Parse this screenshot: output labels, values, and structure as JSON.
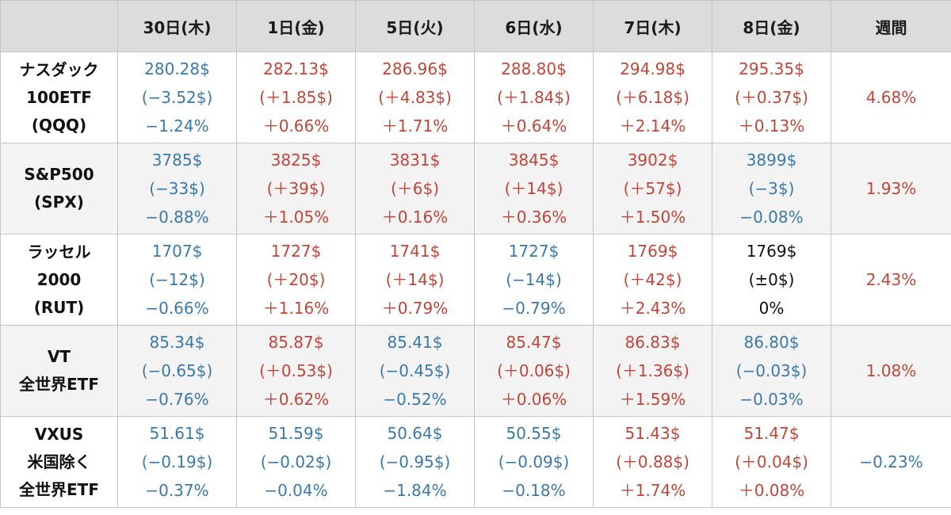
{
  "colors": {
    "up": "#c0463a",
    "down": "#3b79a8",
    "flat": "#111111",
    "header_bg": "#dcdcdc",
    "shade_bg": "#f3f3f3"
  },
  "header": {
    "days": [
      "30日(木)",
      "1日(金)",
      "5日(火)",
      "6日(水)",
      "7日(木)",
      "8日(金)"
    ],
    "weekly": "週間"
  },
  "rows": [
    {
      "name": [
        "ナスダック",
        "100ETF",
        "(QQQ)"
      ],
      "days": [
        {
          "dir": "down",
          "price": "280.28$",
          "change": "(−3.52$)",
          "pct": "−1.24%"
        },
        {
          "dir": "up",
          "price": "282.13$",
          "change": "(＋1.85$)",
          "pct": "＋0.66%"
        },
        {
          "dir": "up",
          "price": "286.96$",
          "change": "(＋4.83$)",
          "pct": "＋1.71%"
        },
        {
          "dir": "up",
          "price": "288.80$",
          "change": "(＋1.84$)",
          "pct": "＋0.64%"
        },
        {
          "dir": "up",
          "price": "294.98$",
          "change": "(＋6.18$)",
          "pct": "＋2.14%"
        },
        {
          "dir": "up",
          "price": "295.35$",
          "change": "(＋0.37$)",
          "pct": "＋0.13%"
        }
      ],
      "weekly": {
        "dir": "up",
        "value": "4.68%"
      }
    },
    {
      "name": [
        "S&P500",
        "(SPX)"
      ],
      "days": [
        {
          "dir": "down",
          "price": "3785$",
          "change": "(−33$)",
          "pct": "−0.88%"
        },
        {
          "dir": "up",
          "price": "3825$",
          "change": "(＋39$)",
          "pct": "＋1.05%"
        },
        {
          "dir": "up",
          "price": "3831$",
          "change": "(＋6$)",
          "pct": "＋0.16%"
        },
        {
          "dir": "up",
          "price": "3845$",
          "change": "(＋14$)",
          "pct": "＋0.36%"
        },
        {
          "dir": "up",
          "price": "3902$",
          "change": "(＋57$)",
          "pct": "＋1.50%"
        },
        {
          "dir": "down",
          "price": "3899$",
          "change": "(−3$)",
          "pct": "−0.08%"
        }
      ],
      "weekly": {
        "dir": "up",
        "value": "1.93%"
      }
    },
    {
      "name": [
        "ラッセル",
        "2000",
        "(RUT)"
      ],
      "days": [
        {
          "dir": "down",
          "price": "1707$",
          "change": "(−12$)",
          "pct": "−0.66%"
        },
        {
          "dir": "up",
          "price": "1727$",
          "change": "(＋20$)",
          "pct": "＋1.16%"
        },
        {
          "dir": "up",
          "price": "1741$",
          "change": "(＋14$)",
          "pct": "＋0.79%"
        },
        {
          "dir": "down",
          "price": "1727$",
          "change": "(−14$)",
          "pct": "−0.79%"
        },
        {
          "dir": "up",
          "price": "1769$",
          "change": "(＋42$)",
          "pct": "＋2.43%"
        },
        {
          "dir": "flat",
          "price": "1769$",
          "change": "(±0$)",
          "pct": "0%"
        }
      ],
      "weekly": {
        "dir": "up",
        "value": "2.43%"
      }
    },
    {
      "name": [
        "VT",
        "全世界ETF"
      ],
      "days": [
        {
          "dir": "down",
          "price": "85.34$",
          "change": "(−0.65$)",
          "pct": "−0.76%"
        },
        {
          "dir": "up",
          "price": "85.87$",
          "change": "(＋0.53$)",
          "pct": "＋0.62%"
        },
        {
          "dir": "down",
          "price": "85.41$",
          "change": "(−0.45$)",
          "pct": "−0.52%"
        },
        {
          "dir": "up",
          "price": "85.47$",
          "change": "(＋0.06$)",
          "pct": "＋0.06%"
        },
        {
          "dir": "up",
          "price": "86.83$",
          "change": "(＋1.36$)",
          "pct": "＋1.59%"
        },
        {
          "dir": "down",
          "price": "86.80$",
          "change": "(−0.03$)",
          "pct": "−0.03%"
        }
      ],
      "weekly": {
        "dir": "up",
        "value": "1.08%"
      }
    },
    {
      "name": [
        "VXUS",
        "米国除く",
        "全世界ETF"
      ],
      "days": [
        {
          "dir": "down",
          "price": "51.61$",
          "change": "(−0.19$)",
          "pct": "−0.37%"
        },
        {
          "dir": "down",
          "price": "51.59$",
          "change": "(−0.02$)",
          "pct": "−0.04%"
        },
        {
          "dir": "down",
          "price": "50.64$",
          "change": "(−0.95$)",
          "pct": "−1.84%"
        },
        {
          "dir": "down",
          "price": "50.55$",
          "change": "(−0.09$)",
          "pct": "−0.18%"
        },
        {
          "dir": "up",
          "price": "51.43$",
          "change": "(＋0.88$)",
          "pct": "＋1.74%"
        },
        {
          "dir": "up",
          "price": "51.47$",
          "change": "(＋0.04$)",
          "pct": "＋0.08%"
        }
      ],
      "weekly": {
        "dir": "down",
        "value": "−0.23%"
      }
    }
  ]
}
